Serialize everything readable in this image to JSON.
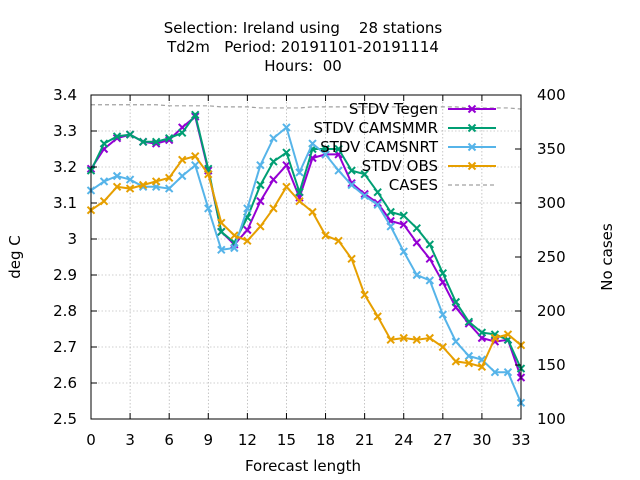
{
  "chart_data": {
    "type": "line",
    "title": [
      "Selection: Ireland using    28 stations",
      "Td2m   Period: 20191101-20191114",
      "Hours:  00"
    ],
    "xlabel": "Forecast length",
    "ylabel": "deg C",
    "y2label": "No cases",
    "xlim": [
      0,
      33
    ],
    "ylim": [
      2.5,
      3.4
    ],
    "y2lim": [
      100,
      400
    ],
    "xticks": [
      0,
      3,
      6,
      9,
      12,
      15,
      18,
      21,
      24,
      27,
      30,
      33
    ],
    "yticks": [
      2.5,
      2.6,
      2.7,
      2.8,
      2.9,
      3,
      3.1,
      3.2,
      3.3,
      3.4
    ],
    "y2ticks": [
      100,
      150,
      200,
      250,
      300,
      350,
      400
    ],
    "grid": true,
    "legend_position": "top-right",
    "x": [
      0,
      1,
      2,
      3,
      4,
      5,
      6,
      7,
      8,
      9,
      10,
      11,
      12,
      13,
      14,
      15,
      16,
      17,
      18,
      19,
      20,
      21,
      22,
      23,
      24,
      25,
      26,
      27,
      28,
      29,
      30,
      31,
      32,
      33
    ],
    "series": [
      {
        "name": "STDV Tegen",
        "color": "#9400d3",
        "marker": "x",
        "axis": "y",
        "values": [
          3.195,
          3.25,
          3.28,
          3.29,
          3.27,
          3.265,
          3.275,
          3.31,
          3.34,
          3.19,
          3.02,
          2.985,
          3.025,
          3.105,
          3.165,
          3.205,
          3.115,
          3.225,
          3.235,
          3.235,
          3.155,
          3.125,
          3.1,
          3.05,
          3.04,
          2.99,
          2.945,
          2.88,
          2.81,
          2.765,
          2.725,
          2.715,
          2.72,
          2.615
        ]
      },
      {
        "name": "STDV CAMSMMR",
        "color": "#009e73",
        "marker": "x",
        "axis": "y",
        "values": [
          3.19,
          3.265,
          3.285,
          3.29,
          3.27,
          3.27,
          3.28,
          3.295,
          3.345,
          3.195,
          3.02,
          2.99,
          3.06,
          3.15,
          3.215,
          3.24,
          3.13,
          3.25,
          3.25,
          3.25,
          3.19,
          3.18,
          3.13,
          3.075,
          3.065,
          3.03,
          2.985,
          2.905,
          2.825,
          2.77,
          2.74,
          2.735,
          2.72,
          2.64
        ]
      },
      {
        "name": "STDV CAMSNRT",
        "color": "#56b4e9",
        "marker": "x",
        "axis": "y",
        "values": [
          3.135,
          3.16,
          3.175,
          3.165,
          3.145,
          3.145,
          3.14,
          3.175,
          3.205,
          3.085,
          2.97,
          2.975,
          3.085,
          3.205,
          3.28,
          3.31,
          3.185,
          3.265,
          3.235,
          3.19,
          3.15,
          3.12,
          3.095,
          3.035,
          2.965,
          2.9,
          2.885,
          2.79,
          2.715,
          2.675,
          2.665,
          2.63,
          2.63,
          2.545
        ]
      },
      {
        "name": "STDV OBS",
        "color": "#e69f00",
        "marker": "x",
        "axis": "y",
        "values": [
          3.08,
          3.105,
          3.145,
          3.14,
          3.15,
          3.16,
          3.17,
          3.22,
          3.23,
          3.18,
          3.045,
          3.01,
          2.995,
          3.035,
          3.085,
          3.145,
          3.105,
          3.075,
          3.01,
          2.995,
          2.945,
          2.845,
          2.785,
          2.72,
          2.725,
          2.72,
          2.725,
          2.7,
          2.66,
          2.655,
          2.645,
          2.725,
          2.735,
          2.705
        ]
      },
      {
        "name": "CASES",
        "color": "#a0a0a0",
        "marker": "none",
        "dash": "dashed",
        "axis": "y2",
        "values": [
          391,
          391,
          391,
          391,
          391,
          391,
          390,
          390,
          390,
          390,
          389,
          389,
          389,
          388,
          388,
          388,
          388,
          389,
          389,
          389,
          389,
          389,
          389,
          389,
          389,
          389,
          389,
          389,
          389,
          388,
          388,
          388,
          388,
          387
        ]
      }
    ]
  }
}
